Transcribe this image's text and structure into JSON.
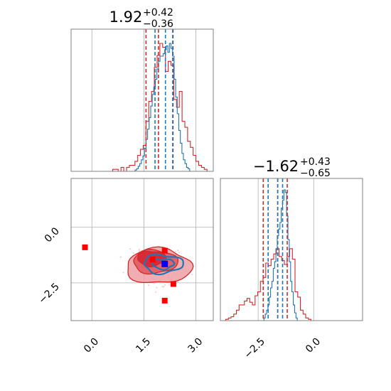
{
  "colors": {
    "red": "#d62728",
    "red_fill_dark": "#d7212d",
    "red_fill_mid": "#e0565e",
    "red_fill_light": "#efa0a4",
    "blue": "#1f77b4",
    "marker_red": "#ff0000",
    "marker_blue": "#0000ff",
    "grid": "#b0b0b0",
    "frame": "#808080"
  },
  "chart_data": [
    {
      "type": "histogram",
      "panel": "marginal-param-1",
      "title": {
        "main": "1.92",
        "sup": "+0.42",
        "sub": "−0.36"
      },
      "xlim": [
        -0.6,
        3.5
      ],
      "grid": true,
      "series": [
        {
          "name": "",
          "color": "#d62728",
          "bin_width": 0.08,
          "bins_start": -0.6,
          "counts": [
            0.0,
            0.0,
            0.0,
            0.0,
            0.0,
            0.0,
            0.0,
            0.0,
            0.0,
            0.0,
            0.0,
            0.0,
            0.0,
            0.0,
            0.0,
            0.01,
            0.01,
            0.0,
            0.02,
            0.0,
            0.02,
            0.03,
            0.03,
            0.05,
            0.08,
            0.11,
            0.13,
            0.25,
            0.35,
            0.4,
            0.52,
            0.58,
            0.64,
            0.62,
            0.5,
            0.55,
            0.53,
            0.36,
            0.32,
            0.4,
            0.25,
            0.22,
            0.15,
            0.12,
            0.08,
            0.05,
            0.03,
            0.02,
            0.01,
            0.0,
            0.0
          ],
          "quantile_lines": [
            1.56,
            1.92,
            2.34
          ]
        },
        {
          "name": "",
          "color": "#1f77b4",
          "bin_width": 0.045,
          "bins_start": 1.2,
          "counts": [
            0.0,
            0.01,
            0.02,
            0.04,
            0.06,
            0.09,
            0.12,
            0.18,
            0.25,
            0.33,
            0.42,
            0.51,
            0.6,
            0.66,
            0.72,
            0.8,
            0.86,
            0.9,
            0.9,
            0.92,
            0.95,
            0.98,
            0.93,
            1.0,
            0.96,
            0.9,
            0.72,
            0.58,
            0.45,
            0.32,
            0.22,
            0.14,
            0.09,
            0.06,
            0.03,
            0.02,
            0.0
          ],
          "quantile_lines": [
            1.82,
            2.12,
            2.33
          ]
        }
      ]
    },
    {
      "type": "scatter-contour",
      "panel": "joint-2d",
      "xlim": [
        -0.6,
        3.5
      ],
      "ylim": [
        -4.2,
        2.2
      ],
      "xticks": [
        0.0,
        1.5,
        3.0
      ],
      "xtick_labels": [
        "0.0",
        "1.5",
        "3.0"
      ],
      "yticks": [
        0.0,
        -2.5
      ],
      "ytick_labels": [
        "0.0",
        "−2.5"
      ],
      "grid": true,
      "red_contours": [
        {
          "level": "outer",
          "center": [
            1.92,
            -1.75
          ],
          "radii": [
            1.25,
            1.05
          ]
        },
        {
          "level": "mid",
          "center": [
            1.82,
            -1.55
          ],
          "radii": [
            0.85,
            0.7
          ]
        },
        {
          "level": "inner",
          "center": [
            1.72,
            -1.4
          ],
          "radii": [
            0.55,
            0.45
          ]
        }
      ],
      "blue_contours": [
        {
          "level": "outer",
          "center": [
            2.05,
            -1.65
          ],
          "radii": [
            0.75,
            0.55
          ]
        },
        {
          "level": "inner",
          "center": [
            2.05,
            -1.65
          ],
          "radii": [
            0.42,
            0.3
          ]
        }
      ],
      "red_markers": [
        [
          -0.2,
          -0.9
        ],
        [
          1.75,
          -1.45
        ],
        [
          2.1,
          -1.05
        ],
        [
          2.35,
          -2.55
        ],
        [
          2.1,
          -3.3
        ]
      ],
      "blue_markers": [
        [
          2.1,
          -1.65
        ]
      ]
    },
    {
      "type": "histogram",
      "panel": "marginal-param-2",
      "title": {
        "main": "−1.62",
        "sup": "+0.43",
        "sub": "−0.65"
      },
      "xlim": [
        -4.2,
        2.2
      ],
      "xticks": [
        -2.5,
        0.0
      ],
      "xtick_labels": [
        "−2.5",
        "0.0"
      ],
      "grid": true,
      "series": [
        {
          "name": "",
          "color": "#d62728",
          "bin_width": 0.12,
          "bins_start": -4.2,
          "counts": [
            0.0,
            0.0,
            0.01,
            0.02,
            0.03,
            0.05,
            0.08,
            0.12,
            0.12,
            0.15,
            0.17,
            0.14,
            0.12,
            0.19,
            0.22,
            0.3,
            0.33,
            0.44,
            0.42,
            0.47,
            0.51,
            0.55,
            0.49,
            0.46,
            0.43,
            0.49,
            0.55,
            0.47,
            0.22,
            0.18,
            0.08,
            0.05,
            0.02,
            0.01,
            0.0,
            0.0
          ],
          "quantile_lines": [
            -2.27,
            -1.62,
            -1.19
          ]
        },
        {
          "name": "",
          "color": "#1f77b4",
          "bin_width": 0.06,
          "bins_start": -2.3,
          "counts": [
            0.0,
            0.02,
            0.05,
            0.08,
            0.12,
            0.18,
            0.25,
            0.3,
            0.4,
            0.45,
            0.55,
            0.65,
            0.7,
            0.75,
            0.86,
            0.92,
            1.0,
            0.98,
            0.8,
            0.62,
            0.45,
            0.3,
            0.22,
            0.12,
            0.06,
            0.02,
            0.0
          ],
          "quantile_lines": [
            -2.05,
            -1.62,
            -1.4
          ]
        }
      ]
    }
  ]
}
